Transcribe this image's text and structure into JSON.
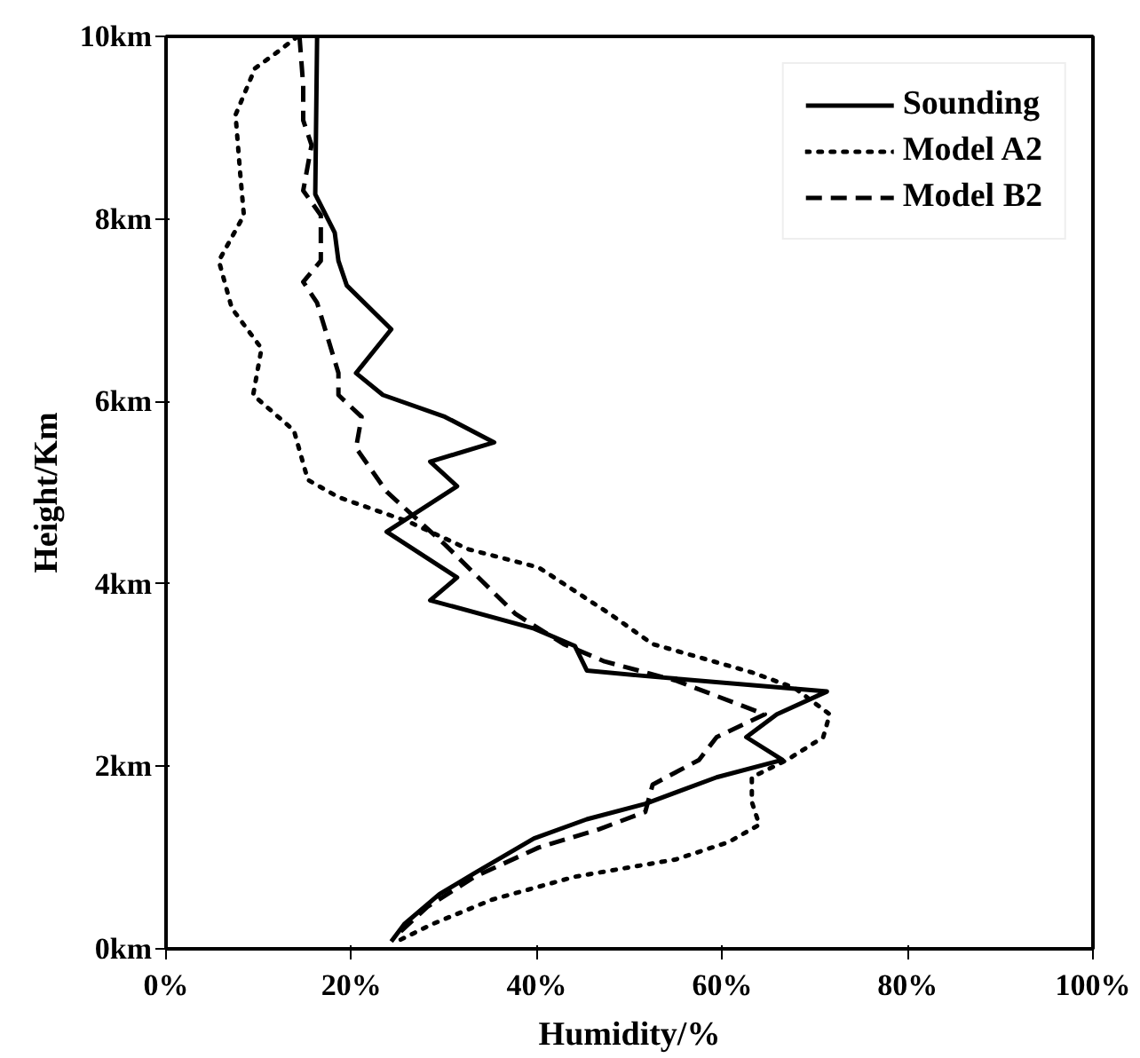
{
  "chart_data": {
    "type": "line",
    "xlabel": "Humidity/%",
    "ylabel": "Height/Km",
    "xlim": [
      0,
      100
    ],
    "xticks": [
      {
        "value": 0,
        "label": "0%"
      },
      {
        "value": 20,
        "label": "20%"
      },
      {
        "value": 40,
        "label": "40%"
      },
      {
        "value": 60,
        "label": "60%"
      },
      {
        "value": 80,
        "label": "80%"
      },
      {
        "value": 100,
        "label": "100%"
      }
    ],
    "ylim": [
      0,
      10
    ],
    "yticks": [
      {
        "value": 0,
        "label": "0km"
      },
      {
        "value": 2,
        "label": "2km"
      },
      {
        "value": 4,
        "label": "4km"
      },
      {
        "value": 6,
        "label": "6km"
      },
      {
        "value": 8,
        "label": "8km"
      },
      {
        "value": 10,
        "label": "10km"
      }
    ],
    "grid": false,
    "legend": "top right",
    "series": [
      {
        "name": "Sounding",
        "color": "#000000",
        "line_style": "solid",
        "x": [
          16.3,
          16.1,
          18.2,
          18.6,
          19.5,
          24.3,
          20.5,
          23.4,
          30.1,
          35.4,
          28.5,
          31.4,
          23.8,
          31.4,
          28.5,
          39.7,
          44.1,
          45.4,
          51.7,
          71.3,
          65.9,
          62.6,
          66.5,
          59.4,
          51.7,
          45.4,
          39.7,
          33.3,
          29.5,
          25.7,
          24.3
        ],
        "values": [
          10,
          8.27,
          7.85,
          7.54,
          7.27,
          6.79,
          6.31,
          6.07,
          5.83,
          5.55,
          5.34,
          5.07,
          4.57,
          4.07,
          3.82,
          3.51,
          3.32,
          3.05,
          2.99,
          2.82,
          2.57,
          2.32,
          2.07,
          1.88,
          1.59,
          1.42,
          1.21,
          0.83,
          0.6,
          0.27,
          0.08
        ]
      },
      {
        "name": "Model A2",
        "color": "#000000",
        "line_style": "dotted",
        "x": [
          14.2,
          12.3,
          9.6,
          7.5,
          8.0,
          8.4,
          5.7,
          7.1,
          10.3,
          9.4,
          13.8,
          15.3,
          18.6,
          26.2,
          32.6,
          40.2,
          47.9,
          52.5,
          63.2,
          67.8,
          71.6,
          70.9,
          67.0,
          63.2,
          63.2,
          64.0,
          60.7,
          55.0,
          44.1,
          35.2,
          28.7,
          24.9
        ],
        "values": [
          10,
          9.85,
          9.65,
          9.14,
          8.5,
          8.04,
          7.54,
          7.02,
          6.58,
          6.07,
          5.68,
          5.14,
          4.95,
          4.68,
          4.38,
          4.18,
          3.67,
          3.34,
          3.03,
          2.86,
          2.57,
          2.32,
          2.07,
          1.88,
          1.61,
          1.36,
          1.17,
          0.98,
          0.79,
          0.54,
          0.27,
          0.08
        ]
      },
      {
        "name": "Model B2",
        "color": "#000000",
        "line_style": "dashed",
        "x": [
          14.4,
          14.8,
          14.8,
          15.7,
          14.8,
          16.7,
          16.7,
          14.8,
          16.3,
          18.6,
          18.6,
          21.1,
          20.5,
          23.8,
          30.1,
          37.7,
          42.9,
          47.3,
          55.0,
          64.6,
          59.4,
          57.5,
          52.5,
          51.7,
          46.7,
          40.2,
          33.3,
          28.2,
          24.9
        ],
        "values": [
          10,
          9.46,
          9.08,
          8.81,
          8.31,
          8.04,
          7.54,
          7.31,
          7.08,
          6.31,
          6.07,
          5.83,
          5.49,
          5.01,
          4.43,
          3.67,
          3.34,
          3.15,
          2.94,
          2.57,
          2.32,
          2.07,
          1.8,
          1.5,
          1.31,
          1.11,
          0.79,
          0.46,
          0.15
        ]
      }
    ]
  }
}
